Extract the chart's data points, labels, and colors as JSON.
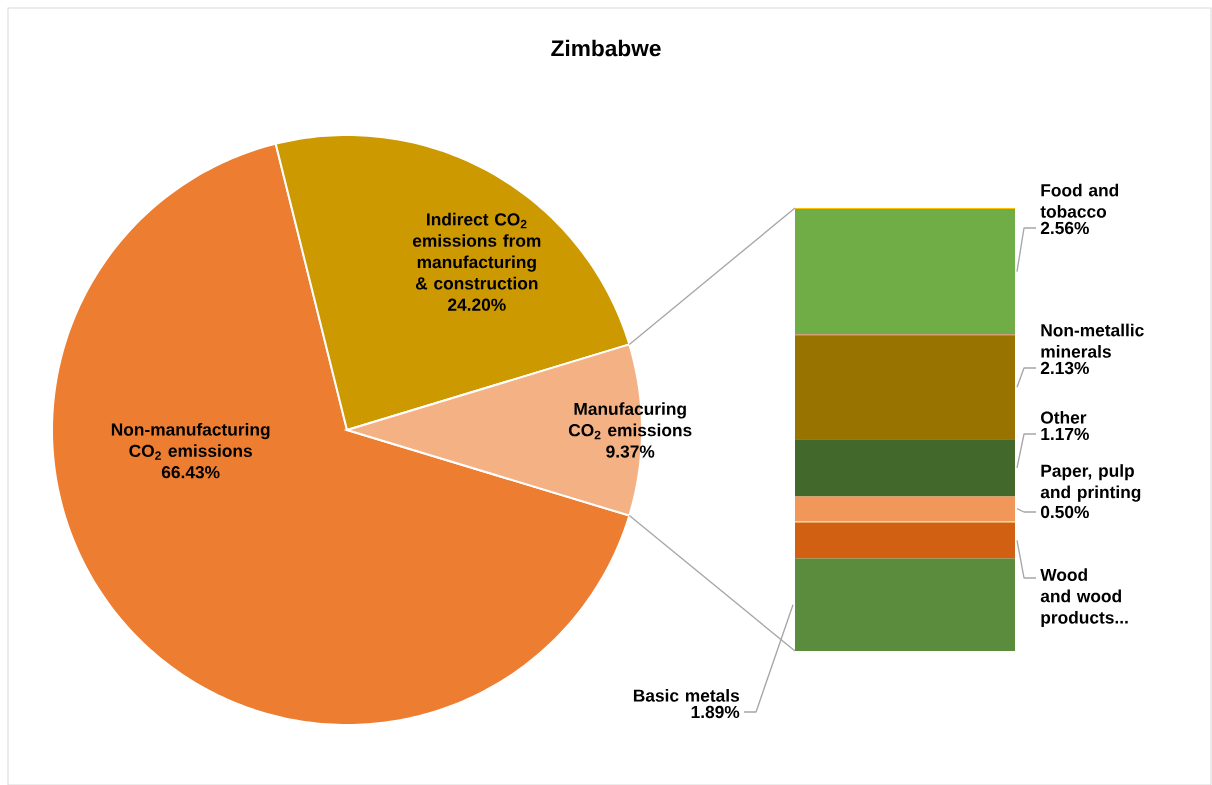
{
  "chart_data": [
    {
      "type": "pie",
      "title": "Zimbabwe",
      "categories": [
        "Non-manufacturing CO$_{2}$ emissions",
        "Indirect CO$_{2}$ emissions from manufacturing & construction",
        "Manufacuring CO$_{2}$ emissions"
      ],
      "values": [
        66.43,
        24.2,
        9.37
      ],
      "value_labels": [
        "66.43%",
        "24.20%",
        "9.37%"
      ],
      "colors": [
        "#ed7d31",
        "#cc9900",
        "#f4b183"
      ]
    },
    {
      "type": "bar",
      "stacked": true,
      "categories": [
        null
      ],
      "series": [
        {
          "name": "Basic metals",
          "color": "#5b8b3c",
          "values": [
            1.89
          ],
          "value_labels": [
            "1.89%"
          ]
        },
        {
          "name": "Wood and wood products...",
          "color": "#d26012",
          "values": [
            0.74
          ],
          "value_labels": [
            null
          ]
        },
        {
          "color": "#ffd966",
          "values": [
            0.03
          ]
        },
        {
          "name": "Paper, pulp and printing",
          "color": "#f1975a",
          "values": [
            0.5
          ],
          "value_labels": [
            "0.50%"
          ]
        },
        {
          "name": "Other",
          "color": "#43682b",
          "values": [
            1.17
          ],
          "value_labels": [
            "1.17%"
          ]
        },
        {
          "name": "Non-metallic minerals",
          "color": "#997300",
          "values": [
            2.13
          ],
          "value_labels": [
            "2.13%"
          ]
        },
        {
          "color": "#d0835a",
          "values": [
            0.02
          ]
        },
        {
          "name": "Food and tobacco",
          "color": "#70ad47",
          "values": [
            2.56
          ],
          "value_labels": [
            "2.56%"
          ]
        },
        {
          "color": "#ffc000",
          "values": [
            0.02
          ]
        }
      ]
    }
  ]
}
